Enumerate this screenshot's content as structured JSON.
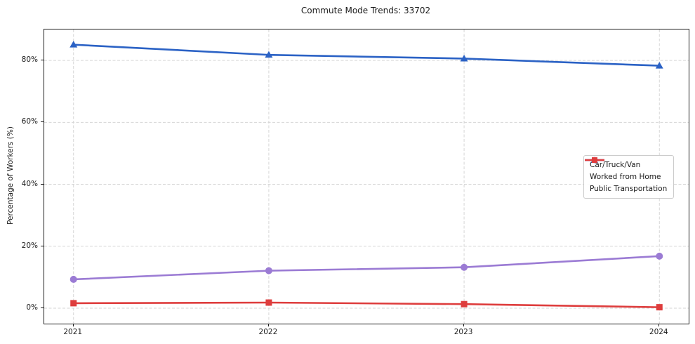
{
  "window": {
    "title": "Commute Mode Trends: 33702"
  },
  "chart_data": {
    "type": "line",
    "title": "Commute Mode Trends: 33702",
    "xlabel": "",
    "ylabel": "Percentage of Workers (%)",
    "x": [
      2021,
      2022,
      2023,
      2024
    ],
    "x_tick_labels": [
      "2021",
      "2022",
      "2023",
      "2024"
    ],
    "y_ticks": [
      0,
      20,
      40,
      60,
      80
    ],
    "y_tick_labels": [
      "0%",
      "20%",
      "40%",
      "60%",
      "80%"
    ],
    "xlim": [
      2020.85,
      2024.15
    ],
    "ylim": [
      -5,
      90
    ],
    "grid": true,
    "grid_style": "dashed",
    "grid_color": "#d6d6d6",
    "legend_position": "center-right",
    "series": [
      {
        "name": "Car/Truck/Van",
        "marker": "triangle",
        "color": "#2b62c5",
        "values": [
          85.1,
          81.8,
          80.6,
          78.3
        ]
      },
      {
        "name": "Worked from Home",
        "marker": "circle",
        "color": "#9b7bd4",
        "values": [
          9.3,
          12.1,
          13.2,
          16.8
        ]
      },
      {
        "name": "Public Transportation",
        "marker": "square",
        "color": "#de3d3d",
        "values": [
          1.6,
          1.8,
          1.3,
          0.3
        ]
      }
    ]
  }
}
